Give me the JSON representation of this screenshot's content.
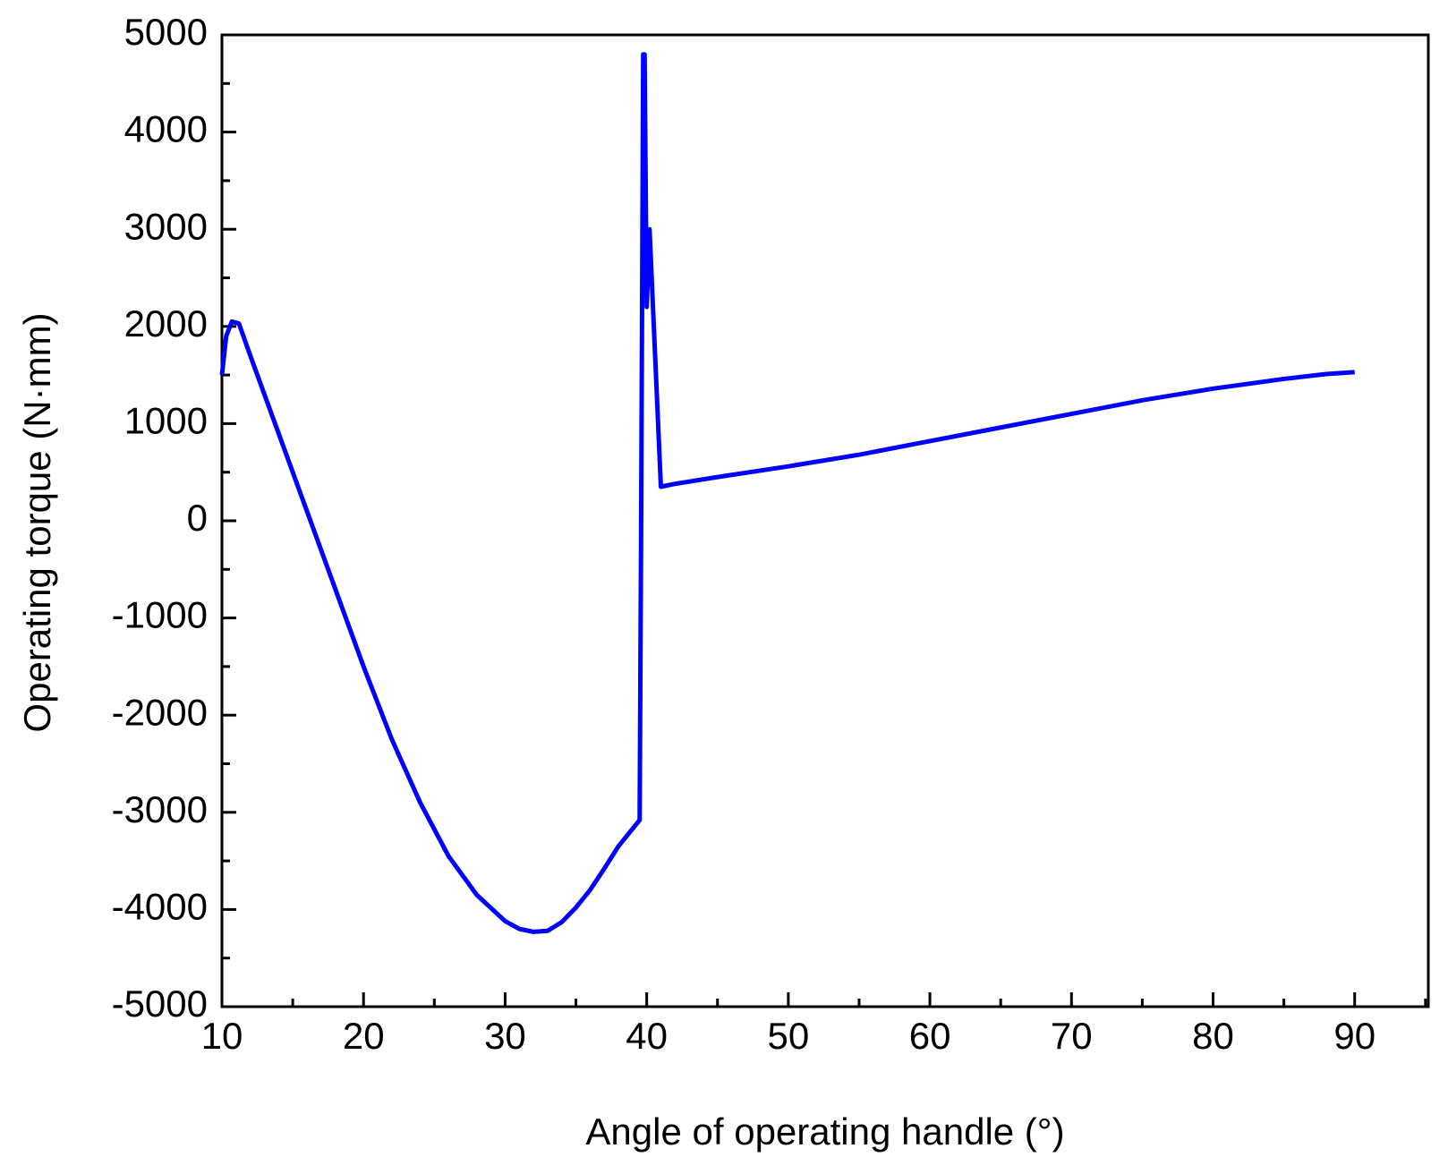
{
  "chart_data": {
    "type": "line",
    "xlabel": "Angle of operating handle (°)",
    "ylabel": "Operating torque (N·mm)",
    "x": [
      10,
      10.3,
      10.7,
      11.2,
      12,
      14,
      16,
      18,
      20,
      22,
      24,
      26,
      28,
      30,
      31,
      32,
      33,
      34,
      35,
      36,
      37,
      38,
      39.5,
      39.6,
      39.75,
      39.85,
      40.0,
      40.2,
      41,
      42,
      45,
      50,
      55,
      60,
      65,
      70,
      75,
      80,
      85,
      88,
      90
    ],
    "series": [
      {
        "name": "Operating torque",
        "color": "#0000ff",
        "values": [
          1500,
          1900,
          2050,
          2030,
          1700,
          900,
          100,
          -700,
          -1500,
          -2250,
          -2900,
          -3450,
          -3850,
          -4120,
          -4200,
          -4230,
          -4220,
          -4130,
          -3980,
          -3800,
          -3580,
          -3350,
          -3080,
          -200,
          4800,
          4800,
          2200,
          3000,
          350,
          380,
          450,
          560,
          680,
          820,
          960,
          1100,
          1240,
          1360,
          1460,
          1510,
          1530
        ]
      }
    ],
    "xlim": [
      10,
      95.2
    ],
    "ylim": [
      -5000,
      5000
    ],
    "xticks": [
      10,
      20,
      30,
      40,
      50,
      60,
      70,
      80,
      90
    ],
    "yticks": [
      -5000,
      -4000,
      -3000,
      -2000,
      -1000,
      0,
      1000,
      2000,
      3000,
      4000,
      5000
    ],
    "xminorticks": [
      15,
      25,
      35,
      45,
      55,
      65,
      75,
      85,
      95
    ],
    "yminorticks": [
      -4500,
      -3500,
      -2500,
      -1500,
      -500,
      500,
      1500,
      2500,
      3500,
      4500
    ],
    "grid": false
  }
}
